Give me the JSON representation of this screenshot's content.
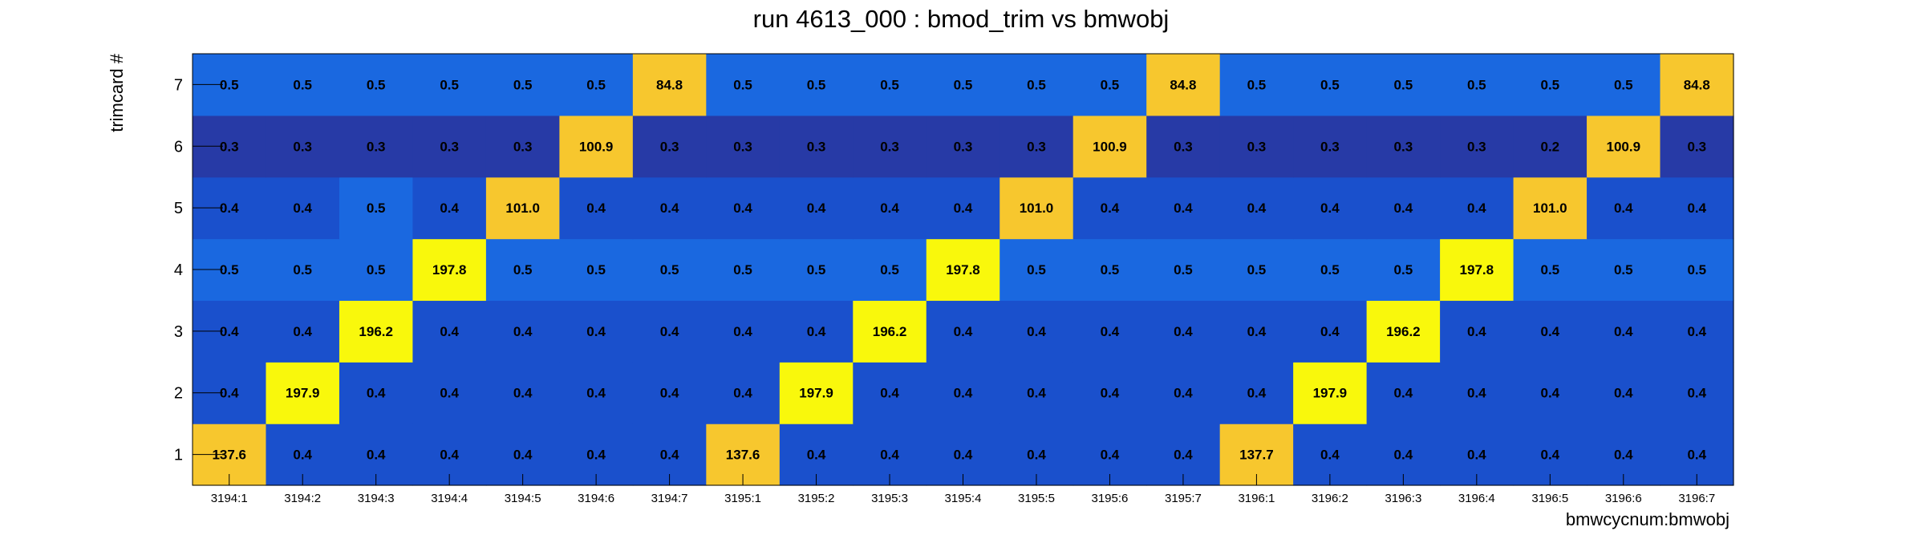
{
  "chart_data": {
    "type": "heatmap",
    "title": "run 4613_000 : bmod_trim vs bmwobj",
    "xlabel": "bmwcycnum:bmwobj",
    "ylabel": "trimcard #",
    "x_categories": [
      "3194:1",
      "3194:2",
      "3194:3",
      "3194:4",
      "3194:5",
      "3194:6",
      "3194:7",
      "3195:1",
      "3195:2",
      "3195:3",
      "3195:4",
      "3195:5",
      "3195:6",
      "3195:7",
      "3196:1",
      "3196:2",
      "3196:3",
      "3196:4",
      "3196:5",
      "3196:6",
      "3196:7"
    ],
    "y_categories": [
      "1",
      "2",
      "3",
      "4",
      "5",
      "6",
      "7"
    ],
    "values": [
      [
        "137.6",
        "0.4",
        "0.4",
        "0.4",
        "0.4",
        "0.4",
        "0.4",
        "137.6",
        "0.4",
        "0.4",
        "0.4",
        "0.4",
        "0.4",
        "0.4",
        "137.7",
        "0.4",
        "0.4",
        "0.4",
        "0.4",
        "0.4",
        "0.4"
      ],
      [
        "0.4",
        "197.9",
        "0.4",
        "0.4",
        "0.4",
        "0.4",
        "0.4",
        "0.4",
        "197.9",
        "0.4",
        "0.4",
        "0.4",
        "0.4",
        "0.4",
        "0.4",
        "197.9",
        "0.4",
        "0.4",
        "0.4",
        "0.4",
        "0.4"
      ],
      [
        "0.4",
        "0.4",
        "196.2",
        "0.4",
        "0.4",
        "0.4",
        "0.4",
        "0.4",
        "0.4",
        "196.2",
        "0.4",
        "0.4",
        "0.4",
        "0.4",
        "0.4",
        "0.4",
        "196.2",
        "0.4",
        "0.4",
        "0.4",
        "0.4"
      ],
      [
        "0.5",
        "0.5",
        "0.5",
        "197.8",
        "0.5",
        "0.5",
        "0.5",
        "0.5",
        "0.5",
        "0.5",
        "197.8",
        "0.5",
        "0.5",
        "0.5",
        "0.5",
        "0.5",
        "0.5",
        "197.8",
        "0.5",
        "0.5",
        "0.5"
      ],
      [
        "0.4",
        "0.4",
        "0.5",
        "0.4",
        "101.0",
        "0.4",
        "0.4",
        "0.4",
        "0.4",
        "0.4",
        "0.4",
        "101.0",
        "0.4",
        "0.4",
        "0.4",
        "0.4",
        "0.4",
        "0.4",
        "101.0",
        "0.4",
        "0.4"
      ],
      [
        "0.3",
        "0.3",
        "0.3",
        "0.3",
        "0.3",
        "100.9",
        "0.3",
        "0.3",
        "0.3",
        "0.3",
        "0.3",
        "0.3",
        "100.9",
        "0.3",
        "0.3",
        "0.3",
        "0.3",
        "0.3",
        "0.2",
        "100.9",
        "0.3"
      ],
      [
        "0.5",
        "0.5",
        "0.5",
        "0.5",
        "0.5",
        "0.5",
        "84.8",
        "0.5",
        "0.5",
        "0.5",
        "0.5",
        "0.5",
        "0.5",
        "84.8",
        "0.5",
        "0.5",
        "0.5",
        "0.5",
        "0.5",
        "0.5",
        "84.8"
      ]
    ],
    "value_range": [
      0,
      200
    ],
    "colors": {
      "dark": "#273aa6",
      "mid": "#1a50cc",
      "light": "#1a68e0",
      "orange": "#f7c72e",
      "yellow": "#f9f80c"
    }
  }
}
